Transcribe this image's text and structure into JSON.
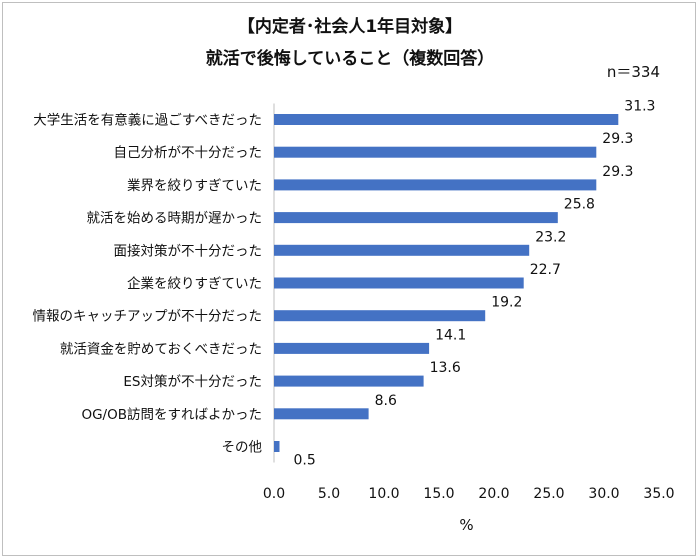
{
  "chart_data": {
    "type": "bar",
    "orientation": "horizontal",
    "title": [
      "【内定者･社会人1年目対象】",
      "就活で後悔していること（複数回答）"
    ],
    "note": "n＝334",
    "categories": [
      "大学生活を有意義に過ごすべきだった",
      "自己分析が不十分だった",
      "業界を絞りすぎていた",
      "就活を始める時期が遅かった",
      "面接対策が不十分だった",
      "企業を絞りすぎていた",
      "情報のキャッチアップが不十分だった",
      "就活資金を貯めておくべきだった",
      "ES対策が不十分だった",
      "OG/OB訪問をすればよかった",
      "その他"
    ],
    "values": [
      31.3,
      29.3,
      29.3,
      25.8,
      23.2,
      22.7,
      19.2,
      14.1,
      13.6,
      8.6,
      0.5
    ],
    "value_labels": [
      "31.3",
      "29.3",
      "29.3",
      "25.8",
      "23.2",
      "22.7",
      "19.2",
      "14.1",
      "13.6",
      "8.6",
      "0.5"
    ],
    "xlabel": "%",
    "xlim": [
      0,
      35
    ],
    "xticks": [
      "0.0",
      "5.0",
      "10.0",
      "15.0",
      "20.0",
      "25.0",
      "30.0",
      "35.0"
    ],
    "bar_color": "#4472c4",
    "grid": false,
    "legend": "none"
  }
}
